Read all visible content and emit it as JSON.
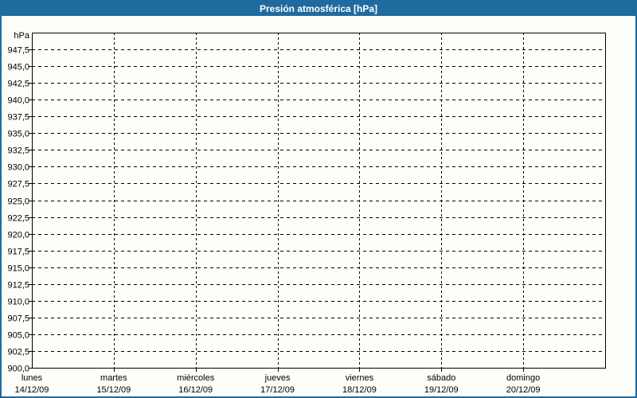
{
  "colors": {
    "titlebar_bg": "#1f6a9f",
    "titlebar_text": "#ffffff",
    "widget_border": "#1f6a9f",
    "background": "#fdfefa",
    "grid": "#000000",
    "axis_text": "#000000"
  },
  "chart_data": {
    "type": "line",
    "title": "Presión atmosférica [hPa]",
    "xlabel": "",
    "ylabel": "hPa",
    "ylim": [
      900,
      950
    ],
    "ytick_step": 2.5,
    "ytick_values": [
      947.5,
      945.0,
      942.5,
      940.0,
      937.5,
      935.0,
      932.5,
      930.0,
      927.5,
      925.0,
      922.5,
      920.0,
      917.5,
      915.0,
      912.5,
      910.0,
      907.5,
      905.0,
      902.5,
      900.0
    ],
    "ytick_labels": [
      "947,5",
      "945,0",
      "942,5",
      "940,0",
      "937,5",
      "935,0",
      "932,5",
      "930,0",
      "927,5",
      "925,0",
      "922,5",
      "920,0",
      "917,5",
      "915,0",
      "912,5",
      "910,0",
      "907,5",
      "905,0",
      "902,5",
      "900,0"
    ],
    "x_categories": [
      {
        "day": "lunes",
        "date": "14/12/09"
      },
      {
        "day": "martes",
        "date": "15/12/09"
      },
      {
        "day": "miércoles",
        "date": "16/12/09"
      },
      {
        "day": "jueves",
        "date": "17/12/09"
      },
      {
        "day": "viernes",
        "date": "18/12/09"
      },
      {
        "day": "sábado",
        "date": "19/12/09"
      },
      {
        "day": "domingo",
        "date": "20/12/09"
      }
    ],
    "series": [],
    "grid": "dashed",
    "legend_position": "none"
  }
}
